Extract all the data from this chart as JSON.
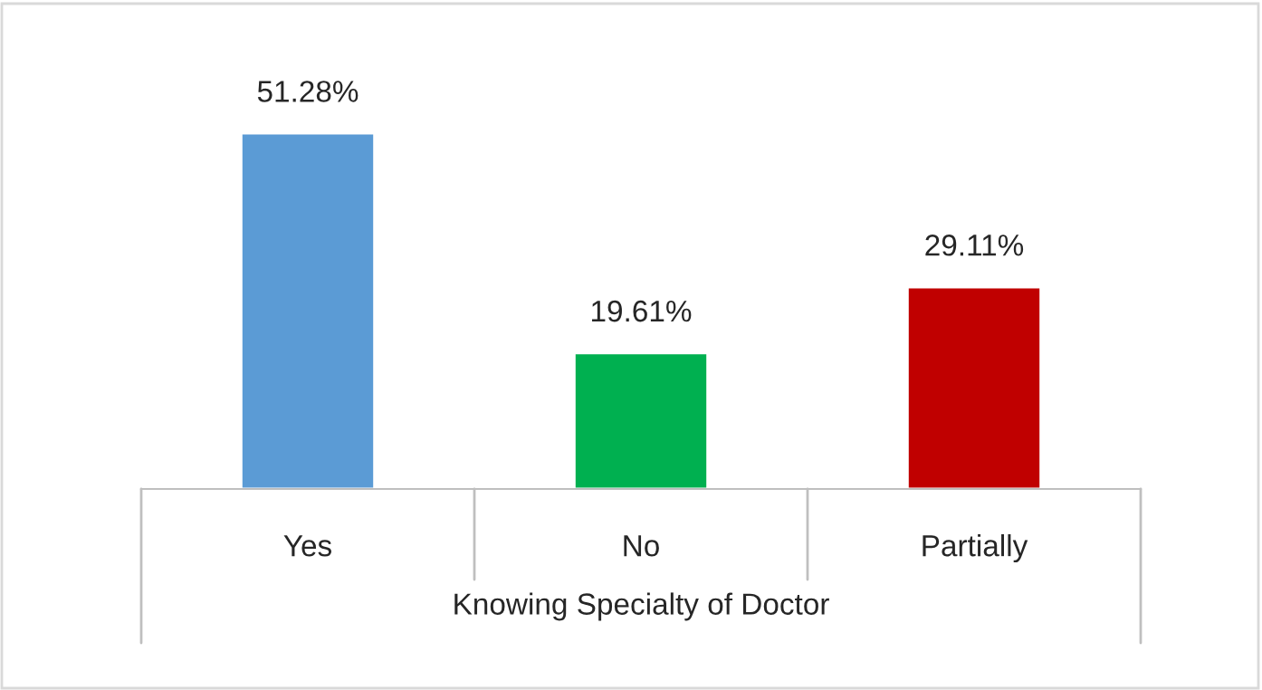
{
  "chart_data": {
    "type": "bar",
    "categories": [
      "Yes",
      "No",
      "Partially"
    ],
    "values": [
      51.28,
      19.61,
      29.11
    ],
    "colors": [
      "#5b9bd5",
      "#00b050",
      "#c00000"
    ],
    "value_labels": [
      "51.28%",
      "19.61%",
      "29.11%"
    ],
    "xlabel": "Knowing Specialty of Doctor",
    "grid": false,
    "legend": false
  }
}
